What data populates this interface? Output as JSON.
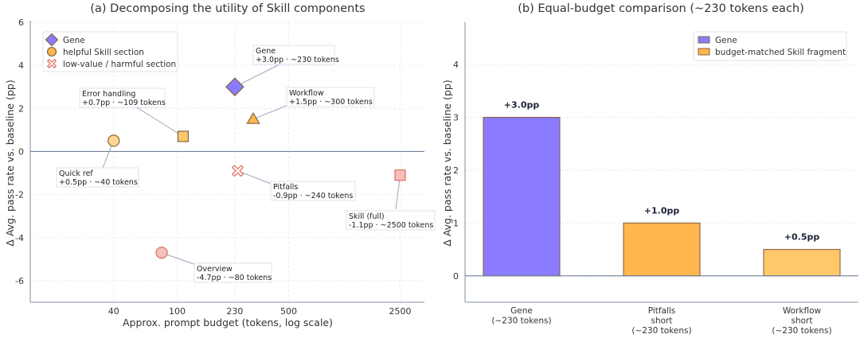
{
  "colors": {
    "gene": "#8b7bff",
    "helpful": "#ffb74d",
    "helpful_light": "#ffd591",
    "helpful_mid": "#ffc86b",
    "harmful": "#f4c1bb",
    "harmful_edge": "#e06a5c",
    "edge": "#8a6240",
    "axis": "#9aa6ba",
    "grid": "#e3e7ee",
    "zero": "#6f7f98",
    "leader": "#9aa6ba"
  },
  "chart_data": [
    {
      "type": "scatter",
      "title": "(a) Decomposing the utility of Skill components",
      "xlabel": "Approx. prompt budget (tokens, log scale)",
      "ylabel": "Δ Avg. pass rate vs. baseline (pp)",
      "xscale": "log",
      "xlim": [
        12,
        3550
      ],
      "ylim": [
        -7,
        6
      ],
      "xticks": [
        40,
        100,
        230,
        500,
        2500
      ],
      "xtick_labels": [
        "40",
        "100",
        "230",
        "500",
        "2500"
      ],
      "yticks": [
        -6,
        -4,
        -2,
        0,
        2,
        4,
        6
      ],
      "ytick_labels": [
        "-6",
        "-4",
        "-2",
        "0",
        "2",
        "4",
        "6"
      ],
      "grid": true,
      "legend_position": "top-left",
      "legend": [
        {
          "label": "Gene",
          "marker": "diamond",
          "color": "#8b7bff"
        },
        {
          "label": "helpful Skill section",
          "marker": "circle",
          "color": "#ffb74d"
        },
        {
          "label": "low-value / harmful section",
          "marker": "x",
          "color": "#e06a5c"
        }
      ],
      "points": [
        {
          "name": "Gene",
          "x": 230,
          "y": 3.0,
          "marker": "diamond",
          "group": "gene",
          "label_line1": "Gene",
          "label_line2": "+3.0pp · ~230 tokens"
        },
        {
          "name": "Workflow",
          "x": 300,
          "y": 1.5,
          "marker": "triangle",
          "group": "helpful",
          "label_line1": "Workflow",
          "label_line2": "+1.5pp · ~300 tokens"
        },
        {
          "name": "Error handling",
          "x": 109,
          "y": 0.7,
          "marker": "square",
          "group": "helpful",
          "label_line1": "Error handling",
          "label_line2": "+0.7pp · ~109 tokens"
        },
        {
          "name": "Quick ref",
          "x": 40,
          "y": 0.5,
          "marker": "circle",
          "group": "helpful_light",
          "label_line1": "Quick ref",
          "label_line2": "+0.5pp · ~40 tokens"
        },
        {
          "name": "Pitfalls",
          "x": 240,
          "y": -0.9,
          "marker": "x",
          "group": "harmful",
          "label_line1": "Pitfalls",
          "label_line2": "-0.9pp · ~240 tokens"
        },
        {
          "name": "Skill (full)",
          "x": 2500,
          "y": -1.1,
          "marker": "square",
          "group": "harmful",
          "label_line1": "Skill (full)",
          "label_line2": "-1.1pp · ~2500 tokens"
        },
        {
          "name": "Overview",
          "x": 80,
          "y": -4.7,
          "marker": "circle",
          "group": "harmful",
          "label_line1": "Overview",
          "label_line2": "-4.7pp · ~80 tokens"
        }
      ]
    },
    {
      "type": "bar",
      "title": "(b) Equal-budget comparison (~230 tokens each)",
      "xlabel": "",
      "ylabel": "Δ Avg. pass rate vs. baseline (pp)",
      "ylim": [
        -0.5,
        4.8
      ],
      "yticks": [
        0,
        1,
        2,
        3,
        4
      ],
      "ytick_labels": [
        "0",
        "1",
        "2",
        "3",
        "4"
      ],
      "grid": true,
      "legend_position": "top-right",
      "legend": [
        {
          "label": "Gene",
          "color": "#8b7bff"
        },
        {
          "label": "budget-matched Skill fragment",
          "color": "#ffb74d"
        }
      ],
      "categories": [
        [
          "Gene",
          "(~230 tokens)"
        ],
        [
          "Pitfalls",
          "short",
          "(~230 tokens)"
        ],
        [
          "Workflow",
          "short",
          "(~230 tokens)"
        ]
      ],
      "values": [
        3.0,
        1.0,
        0.5
      ],
      "value_labels": [
        "+3.0pp",
        "+1.0pp",
        "+0.5pp"
      ],
      "bar_colors": [
        "#8b7bff",
        "#ffb74d",
        "#ffc86b"
      ]
    }
  ]
}
